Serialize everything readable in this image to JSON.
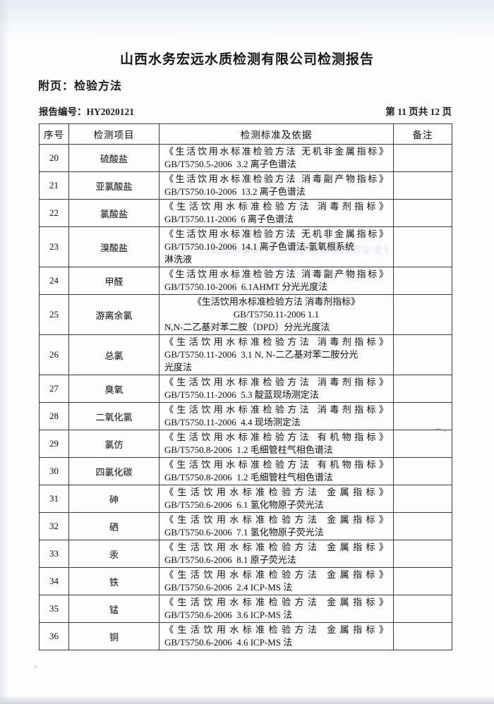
{
  "page": {
    "title": "山西水务宏远水质检测有限公司检测报告",
    "section_label": "附页：检验方法",
    "report_no_label": "报告编号：",
    "report_no_value": "HY2020121",
    "page_indicator": "第 11 页共 12 页"
  },
  "table": {
    "headers": [
      "序号",
      "检测项目",
      "检测标准及依据",
      "备注"
    ],
    "rows": [
      {
        "no": "20",
        "item": "硫酸盐",
        "remark": "",
        "lines": [
          {
            "t": "《生活饮用水标准检验方法 无机非金属指标》",
            "a": "j"
          },
          {
            "t": "GB/T5750.5-2006  3.2 离子色谱法",
            "a": "l"
          }
        ]
      },
      {
        "no": "21",
        "item": "亚氯酸盐",
        "remark": "",
        "lines": [
          {
            "t": "《生活饮用水标准检验方法 消毒副产物指标》",
            "a": "j"
          },
          {
            "t": "GB/T5750.10-2006  13.2 离子色谱法",
            "a": "l"
          }
        ]
      },
      {
        "no": "22",
        "item": "氯酸盐",
        "remark": "",
        "lines": [
          {
            "t": "《生活饮用水标准检验方法 消毒剂指标》",
            "a": "j"
          },
          {
            "t": "GB/T5750.11-2006  6 离子色谱法",
            "a": "l"
          }
        ]
      },
      {
        "no": "23",
        "item": "溴酸盐",
        "remark": "",
        "lines": [
          {
            "t": "《生活饮用水标准检验方法 无机非金属指标》",
            "a": "j"
          },
          {
            "t": "GB/T5750.10-2006  14.1 离子色谱法-氢氧根系统",
            "a": "l"
          },
          {
            "t": "淋洗液",
            "a": "l"
          }
        ]
      },
      {
        "no": "24",
        "item": "甲醛",
        "remark": "",
        "lines": [
          {
            "t": "《生活饮用水标准检验方法 消毒副产物指标》",
            "a": "j"
          },
          {
            "t": "GB/T5750.10-2006  6.1AHMT 分光光度法",
            "a": "l"
          }
        ]
      },
      {
        "no": "25",
        "item": "游离余氯",
        "remark": "",
        "lines": [
          {
            "t": "《生活饮用水标准检验方法 消毒剂指标》",
            "a": "c"
          },
          {
            "t": "GB/T5750.11-2006 1.1",
            "a": "c"
          },
          {
            "t": "N,N-二乙基对苯二胺（DPD）分光光度法",
            "a": "l"
          }
        ]
      },
      {
        "no": "26",
        "item": "总氯",
        "remark": "",
        "lines": [
          {
            "t": "《生活饮用水标准检验方法 消毒剂指标》",
            "a": "j"
          },
          {
            "t": "GB/T5750.11-2006  3.1 N, N-二乙基对苯二胺分光",
            "a": "l"
          },
          {
            "t": "光度法",
            "a": "l"
          }
        ]
      },
      {
        "no": "27",
        "item": "臭氧",
        "remark": "",
        "lines": [
          {
            "t": "《生活饮用水标准检验方法 消毒剂指标》",
            "a": "j"
          },
          {
            "t": "GB/T5750.11-2006  5.3 靛蓝现场测定法",
            "a": "l"
          }
        ]
      },
      {
        "no": "28",
        "item": "二氧化氯",
        "remark": "",
        "lines": [
          {
            "t": "《生活饮用水标准检验方法 消毒剂指标》",
            "a": "j"
          },
          {
            "t": "GB/T5750.11-2006  4.4 现场测定法",
            "a": "l"
          }
        ]
      },
      {
        "no": "29",
        "item": "氯仿",
        "remark": "",
        "lines": [
          {
            "t": "《生活饮用水标准检验方法 有机物指标》",
            "a": "j"
          },
          {
            "t": "GB/T5750.8-2006  1.2 毛细管柱气相色谱法",
            "a": "l"
          }
        ]
      },
      {
        "no": "30",
        "item": "四氯化碳",
        "remark": "",
        "lines": [
          {
            "t": "《生活饮用水标准检验方法 有机物指标》",
            "a": "j"
          },
          {
            "t": "GB/T5750.8-2006  1.2 毛细管柱气相色谱法",
            "a": "l"
          }
        ]
      },
      {
        "no": "31",
        "item": "砷",
        "remark": "",
        "lines": [
          {
            "t": "《生活饮用水标准检验方法 金属指标》",
            "a": "j"
          },
          {
            "t": "GB/T5750.6-2006  6.1 氢化物原子荧光法",
            "a": "l"
          }
        ]
      },
      {
        "no": "32",
        "item": "硒",
        "remark": "",
        "lines": [
          {
            "t": "《生活饮用水标准检验方法 金属指标》",
            "a": "j"
          },
          {
            "t": "GB/T5750.6-2006  7.1 氢化物原子荧光法",
            "a": "l"
          }
        ]
      },
      {
        "no": "33",
        "item": "汞",
        "remark": "",
        "lines": [
          {
            "t": "《生活饮用水标准检验方法 金属指标》",
            "a": "j"
          },
          {
            "t": "GB/T5750.6-2006  8.1 原子荧光法",
            "a": "l"
          }
        ]
      },
      {
        "no": "34",
        "item": "铁",
        "remark": "",
        "lines": [
          {
            "t": "《生活饮用水标准检验方法 金属指标》",
            "a": "j"
          },
          {
            "t": "GB/T5750.6-2006  2.4 ICP-MS 法",
            "a": "l"
          }
        ]
      },
      {
        "no": "35",
        "item": "锰",
        "remark": "",
        "lines": [
          {
            "t": "《生活饮用水标准检验方法 金属指标》",
            "a": "j"
          },
          {
            "t": "GB/T5750.6-2006  3.6 ICP-MS 法",
            "a": "l"
          }
        ]
      },
      {
        "no": "36",
        "item": "铜",
        "remark": "",
        "lines": [
          {
            "t": "《生活饮用水标准检验方法 金属指标》",
            "a": "j"
          },
          {
            "t": "GB/T5750.6-2006  4.6 ICP-MS 法",
            "a": "l"
          }
        ]
      }
    ]
  },
  "artifacts": {
    "bleed_line_1": "《生活饮用水标准检验方法 消毒剂指标》",
    "bleed_line_2": "GB/T5750.11-2006 现场测定法",
    "pencil_mark": "×"
  },
  "colors": {
    "ink": "#1d1d21",
    "border": "#39393d",
    "scan_shadow": "#cdd1d7"
  }
}
